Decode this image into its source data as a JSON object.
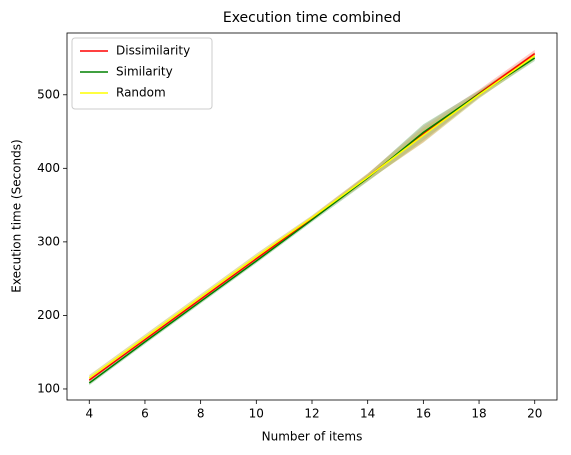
{
  "chart_data": {
    "type": "line",
    "title": "Execution time combined",
    "x_label": "Number of items",
    "y_label": "Execution time (Seconds)",
    "x": [
      4,
      6,
      8,
      10,
      12,
      14,
      16,
      18,
      20
    ],
    "series": [
      {
        "name": "Dissimilarity",
        "color": "#ff0000",
        "band_color": "#ff9999",
        "values": [
          112,
          167,
          222,
          277,
          332,
          388,
          447,
          502,
          556
        ],
        "lower": [
          108,
          163,
          218,
          273,
          329,
          383,
          436,
          497,
          551
        ],
        "upper": [
          116,
          171,
          226,
          281,
          335,
          393,
          458,
          507,
          561
        ]
      },
      {
        "name": "Similarity",
        "color": "#008000",
        "band_color": "#80c080",
        "values": [
          108,
          164,
          219,
          274,
          330,
          387,
          449,
          501,
          550
        ],
        "lower": [
          105,
          161,
          216,
          271,
          327,
          382,
          438,
          496,
          546
        ],
        "upper": [
          111,
          167,
          222,
          277,
          333,
          392,
          460,
          506,
          554
        ]
      },
      {
        "name": "Random",
        "color": "#ffff00",
        "band_color": "#c8c060",
        "values": [
          115,
          170,
          225,
          280,
          333,
          388,
          445,
          500,
          553
        ],
        "lower": [
          111,
          166,
          221,
          276,
          330,
          383,
          435,
          495,
          548
        ],
        "upper": [
          119,
          174,
          229,
          284,
          336,
          393,
          455,
          505,
          558
        ]
      }
    ],
    "xlim": [
      3.2,
      20.8
    ],
    "ylim": [
      85,
      584
    ],
    "xticks": [
      4,
      6,
      8,
      10,
      12,
      14,
      16,
      18,
      20
    ],
    "yticks": [
      100,
      200,
      300,
      400,
      500
    ],
    "legend": "upper left"
  }
}
